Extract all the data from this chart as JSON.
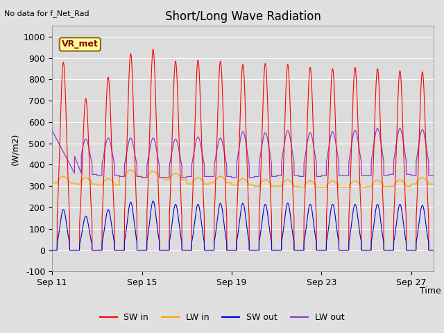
{
  "title": "Short/Long Wave Radiation",
  "xlabel": "Time",
  "ylabel": "(W/m2)",
  "top_left_text": "No data for f_Net_Rad",
  "box_label": "VR_met",
  "ylim": [
    -100,
    1050
  ],
  "yticks": [
    -100,
    0,
    100,
    200,
    300,
    400,
    500,
    600,
    700,
    800,
    900,
    1000
  ],
  "xtick_labels": [
    "Sep 11",
    "Sep 15",
    "Sep 19",
    "Sep 23",
    "Sep 27"
  ],
  "xtick_pos": [
    0,
    4,
    8,
    12,
    16
  ],
  "fig_bg_color": "#e0e0e0",
  "plot_bg_color": "#dcdcdc",
  "sw_in_color": "#ff0000",
  "lw_in_color": "#ffa500",
  "sw_out_color": "#0000dd",
  "lw_out_color": "#9933cc",
  "n_days": 17,
  "pts_per_day": 288,
  "sw_in_peaks": [
    880,
    710,
    810,
    920,
    940,
    885,
    890,
    885,
    870,
    875,
    870,
    855,
    850,
    855,
    850,
    840,
    835
  ],
  "lw_in_base": [
    315,
    310,
    305,
    345,
    340,
    330,
    310,
    315,
    305,
    300,
    300,
    295,
    295,
    295,
    298,
    300,
    310
  ],
  "sw_out_peaks": [
    190,
    160,
    190,
    225,
    230,
    215,
    215,
    220,
    220,
    215,
    220,
    215,
    215,
    215,
    215,
    215,
    210
  ],
  "lw_out_base": [
    370,
    355,
    350,
    345,
    340,
    340,
    345,
    345,
    340,
    345,
    350,
    345,
    350,
    350,
    350,
    355,
    350
  ],
  "lw_out_peak_extra": [
    185,
    165,
    175,
    180,
    185,
    180,
    185,
    180,
    215,
    205,
    210,
    205,
    205,
    210,
    220,
    215,
    215
  ]
}
